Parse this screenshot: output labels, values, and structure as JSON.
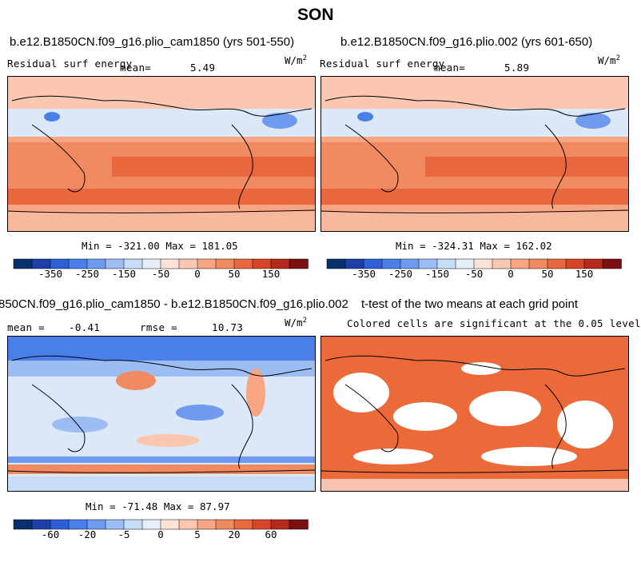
{
  "page": {
    "season": "SON"
  },
  "panels": [
    {
      "id": "p1",
      "case_title": "b.e12.B1850CN.f09_g16.plio_cam1850 (yrs 501-550)",
      "variable_label": "Residual surf energy",
      "stat_label": "mean=",
      "stat_value": "5.49",
      "units": "W/m",
      "units_exp": "2",
      "minmax": "Min = -321.00 Max = 181.05"
    },
    {
      "id": "p2",
      "case_title": "b.e12.B1850CN.f09_g16.plio.002 (yrs 601-650)",
      "variable_label": "Residual surf energy",
      "stat_label": "mean=",
      "stat_value": "5.89",
      "units": "W/m",
      "units_exp": "2",
      "minmax": "Min = -324.31 Max = 162.02"
    },
    {
      "id": "p3",
      "case_title": "850CN.f09_g16.plio_cam1850 - b.e12.B1850CN.f09_g16.plio.002",
      "mean_label": "mean =",
      "mean_value": "-0.41",
      "rmse_label": "rmse =",
      "rmse_value": "10.73",
      "units": "W/m",
      "units_exp": "2",
      "minmax": "Min = -71.48 Max = 87.97"
    },
    {
      "id": "p4",
      "case_title": "t-test of the two means at each grid point",
      "subtitle": "Colored cells are significant at the 0.05 level"
    }
  ],
  "colorbars": {
    "abs": {
      "colors": [
        "#08306b",
        "#1c3fa8",
        "#2f5fd6",
        "#4a7fe8",
        "#6e9bf0",
        "#9cbcf4",
        "#c6dcf7",
        "#e7eefa",
        "#fde3d6",
        "#fbc7b0",
        "#f7a582",
        "#f08a60",
        "#e8673e",
        "#d8462a",
        "#b62a1e",
        "#7a1010"
      ],
      "tick_labels": [
        "-350",
        "-250",
        "-150",
        "-50",
        "0",
        "50",
        "150"
      ]
    },
    "diff": {
      "colors": [
        "#08306b",
        "#1c3fa8",
        "#2f5fd6",
        "#4a7fe8",
        "#6e9bf0",
        "#9cbcf4",
        "#c6dcf7",
        "#e7eefa",
        "#fde3d6",
        "#fbc7b0",
        "#f7a582",
        "#f08a60",
        "#e8673e",
        "#d8462a",
        "#b62a1e",
        "#7a1010"
      ],
      "tick_labels": [
        "-60",
        "-20",
        "-5",
        "0",
        "5",
        "20",
        "60"
      ]
    }
  },
  "map_colors": {
    "land": "#f7b89c",
    "ocean_warm": "#f08a60",
    "ocean_hot": "#e8673e",
    "ocean_cool": "#c6dcf7",
    "ocean_cold": "#6e9bf0",
    "diff_neutral": "#dce8f8",
    "diff_neg": "#4a7fe8",
    "diff_pos": "#f08a60",
    "sig": "#ec6a3a"
  }
}
